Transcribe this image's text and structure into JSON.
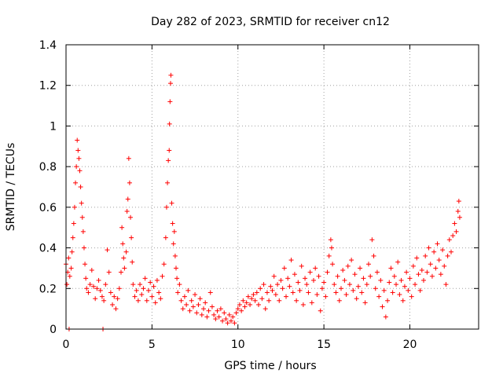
{
  "chart_data": {
    "type": "scatter",
    "title": "Day 282 of 2023, SRMTID for receiver cn12",
    "xlabel": "GPS time / hours",
    "ylabel": "SRMTID / TECUs",
    "xlim": [
      0,
      24
    ],
    "ylim": [
      0,
      1.4
    ],
    "xticks": [
      0,
      5,
      10,
      15,
      20
    ],
    "xtick_labels": [
      "0",
      "5",
      "10",
      "15",
      "20"
    ],
    "yticks": [
      0,
      0.2,
      0.4,
      0.6,
      0.8,
      1.0,
      1.2,
      1.4
    ],
    "ytick_labels": [
      "0",
      "0.2",
      "0.4",
      "0.6",
      "0.8",
      "1",
      "1.2",
      "1.4"
    ],
    "grid": true,
    "marker": "+",
    "color": "#ff0000",
    "series": [
      {
        "name": "SRMTID",
        "points": [
          [
            0.0,
            0.32
          ],
          [
            0.05,
            0.22
          ],
          [
            0.1,
            0.28
          ],
          [
            0.15,
            0.35
          ],
          [
            0.18,
            0.0
          ],
          [
            0.22,
            0.26
          ],
          [
            0.3,
            0.3
          ],
          [
            0.35,
            0.38
          ],
          [
            0.4,
            0.45
          ],
          [
            0.45,
            0.52
          ],
          [
            0.5,
            0.6
          ],
          [
            0.55,
            0.72
          ],
          [
            0.6,
            0.8
          ],
          [
            0.65,
            0.93
          ],
          [
            0.7,
            0.88
          ],
          [
            0.75,
            0.84
          ],
          [
            0.8,
            0.78
          ],
          [
            0.85,
            0.7
          ],
          [
            0.9,
            0.62
          ],
          [
            0.95,
            0.55
          ],
          [
            1.0,
            0.48
          ],
          [
            1.05,
            0.4
          ],
          [
            1.1,
            0.32
          ],
          [
            1.15,
            0.25
          ],
          [
            1.2,
            0.2
          ],
          [
            1.3,
            0.18
          ],
          [
            1.4,
            0.22
          ],
          [
            1.5,
            0.29
          ],
          [
            1.6,
            0.21
          ],
          [
            1.7,
            0.15
          ],
          [
            1.8,
            0.2
          ],
          [
            1.9,
            0.24
          ],
          [
            2.0,
            0.19
          ],
          [
            2.1,
            0.16
          ],
          [
            2.15,
            0.0
          ],
          [
            2.2,
            0.14
          ],
          [
            2.3,
            0.22
          ],
          [
            2.4,
            0.39
          ],
          [
            2.5,
            0.28
          ],
          [
            2.6,
            0.18
          ],
          [
            2.7,
            0.12
          ],
          [
            2.8,
            0.16
          ],
          [
            2.9,
            0.1
          ],
          [
            3.0,
            0.15
          ],
          [
            3.1,
            0.2
          ],
          [
            3.2,
            0.28
          ],
          [
            3.25,
            0.5
          ],
          [
            3.3,
            0.42
          ],
          [
            3.35,
            0.35
          ],
          [
            3.4,
            0.3
          ],
          [
            3.5,
            0.38
          ],
          [
            3.55,
            0.58
          ],
          [
            3.6,
            0.64
          ],
          [
            3.65,
            0.84
          ],
          [
            3.7,
            0.72
          ],
          [
            3.75,
            0.55
          ],
          [
            3.8,
            0.45
          ],
          [
            3.85,
            0.33
          ],
          [
            3.9,
            0.22
          ],
          [
            4.0,
            0.16
          ],
          [
            4.1,
            0.19
          ],
          [
            4.2,
            0.14
          ],
          [
            4.3,
            0.22
          ],
          [
            4.4,
            0.17
          ],
          [
            4.5,
            0.2
          ],
          [
            4.6,
            0.25
          ],
          [
            4.7,
            0.14
          ],
          [
            4.8,
            0.19
          ],
          [
            4.9,
            0.23
          ],
          [
            5.0,
            0.16
          ],
          [
            5.1,
            0.21
          ],
          [
            5.2,
            0.13
          ],
          [
            5.3,
            0.24
          ],
          [
            5.4,
            0.18
          ],
          [
            5.5,
            0.15
          ],
          [
            5.6,
            0.26
          ],
          [
            5.7,
            0.32
          ],
          [
            5.8,
            0.45
          ],
          [
            5.85,
            0.6
          ],
          [
            5.9,
            0.72
          ],
          [
            5.95,
            0.83
          ],
          [
            6.0,
            0.88
          ],
          [
            6.02,
            1.01
          ],
          [
            6.05,
            1.12
          ],
          [
            6.08,
            1.21
          ],
          [
            6.1,
            1.25
          ],
          [
            6.15,
            0.62
          ],
          [
            6.2,
            0.52
          ],
          [
            6.25,
            0.42
          ],
          [
            6.3,
            0.48
          ],
          [
            6.35,
            0.36
          ],
          [
            6.4,
            0.3
          ],
          [
            6.45,
            0.25
          ],
          [
            6.5,
            0.18
          ],
          [
            6.6,
            0.22
          ],
          [
            6.7,
            0.14
          ],
          [
            6.8,
            0.1
          ],
          [
            6.9,
            0.16
          ],
          [
            7.0,
            0.12
          ],
          [
            7.1,
            0.19
          ],
          [
            7.2,
            0.09
          ],
          [
            7.3,
            0.14
          ],
          [
            7.4,
            0.11
          ],
          [
            7.5,
            0.17
          ],
          [
            7.6,
            0.08
          ],
          [
            7.7,
            0.12
          ],
          [
            7.8,
            0.15
          ],
          [
            7.9,
            0.07
          ],
          [
            8.0,
            0.1
          ],
          [
            8.1,
            0.13
          ],
          [
            8.2,
            0.06
          ],
          [
            8.3,
            0.09
          ],
          [
            8.4,
            0.18
          ],
          [
            8.5,
            0.11
          ],
          [
            8.6,
            0.07
          ],
          [
            8.7,
            0.05
          ],
          [
            8.8,
            0.09
          ],
          [
            8.9,
            0.06
          ],
          [
            9.0,
            0.1
          ],
          [
            9.1,
            0.04
          ],
          [
            9.2,
            0.08
          ],
          [
            9.3,
            0.05
          ],
          [
            9.4,
            0.03
          ],
          [
            9.5,
            0.07
          ],
          [
            9.6,
            0.04
          ],
          [
            9.7,
            0.06
          ],
          [
            9.8,
            0.03
          ],
          [
            9.9,
            0.08
          ],
          [
            10.0,
            0.1
          ],
          [
            10.1,
            0.12
          ],
          [
            10.2,
            0.09
          ],
          [
            10.3,
            0.14
          ],
          [
            10.4,
            0.11
          ],
          [
            10.5,
            0.13
          ],
          [
            10.6,
            0.16
          ],
          [
            10.7,
            0.12
          ],
          [
            10.8,
            0.15
          ],
          [
            10.9,
            0.17
          ],
          [
            11.0,
            0.14
          ],
          [
            11.1,
            0.18
          ],
          [
            11.2,
            0.12
          ],
          [
            11.3,
            0.2
          ],
          [
            11.4,
            0.15
          ],
          [
            11.5,
            0.22
          ],
          [
            11.6,
            0.1
          ],
          [
            11.7,
            0.18
          ],
          [
            11.8,
            0.14
          ],
          [
            11.9,
            0.21
          ],
          [
            12.0,
            0.19
          ],
          [
            12.1,
            0.26
          ],
          [
            12.2,
            0.17
          ],
          [
            12.3,
            0.22
          ],
          [
            12.4,
            0.14
          ],
          [
            12.5,
            0.24
          ],
          [
            12.6,
            0.2
          ],
          [
            12.7,
            0.3
          ],
          [
            12.8,
            0.16
          ],
          [
            12.9,
            0.25
          ],
          [
            13.0,
            0.21
          ],
          [
            13.1,
            0.34
          ],
          [
            13.2,
            0.18
          ],
          [
            13.3,
            0.27
          ],
          [
            13.4,
            0.14
          ],
          [
            13.5,
            0.23
          ],
          [
            13.6,
            0.19
          ],
          [
            13.7,
            0.31
          ],
          [
            13.8,
            0.12
          ],
          [
            13.9,
            0.25
          ],
          [
            14.0,
            0.22
          ],
          [
            14.1,
            0.18
          ],
          [
            14.2,
            0.28
          ],
          [
            14.3,
            0.13
          ],
          [
            14.4,
            0.24
          ],
          [
            14.5,
            0.3
          ],
          [
            14.6,
            0.17
          ],
          [
            14.7,
            0.26
          ],
          [
            14.8,
            0.09
          ],
          [
            14.9,
            0.2
          ],
          [
            15.0,
            0.23
          ],
          [
            15.1,
            0.16
          ],
          [
            15.2,
            0.28
          ],
          [
            15.3,
            0.36
          ],
          [
            15.4,
            0.44
          ],
          [
            15.45,
            0.4
          ],
          [
            15.5,
            0.32
          ],
          [
            15.6,
            0.22
          ],
          [
            15.7,
            0.18
          ],
          [
            15.8,
            0.26
          ],
          [
            15.9,
            0.14
          ],
          [
            16.0,
            0.2
          ],
          [
            16.1,
            0.29
          ],
          [
            16.2,
            0.24
          ],
          [
            16.3,
            0.17
          ],
          [
            16.4,
            0.31
          ],
          [
            16.5,
            0.22
          ],
          [
            16.6,
            0.34
          ],
          [
            16.7,
            0.19
          ],
          [
            16.8,
            0.27
          ],
          [
            16.9,
            0.15
          ],
          [
            17.0,
            0.21
          ],
          [
            17.1,
            0.3
          ],
          [
            17.2,
            0.18
          ],
          [
            17.3,
            0.25
          ],
          [
            17.4,
            0.13
          ],
          [
            17.5,
            0.22
          ],
          [
            17.6,
            0.32
          ],
          [
            17.7,
            0.26
          ],
          [
            17.8,
            0.44
          ],
          [
            17.9,
            0.36
          ],
          [
            18.0,
            0.2
          ],
          [
            18.1,
            0.28
          ],
          [
            18.2,
            0.16
          ],
          [
            18.3,
            0.24
          ],
          [
            18.4,
            0.11
          ],
          [
            18.5,
            0.19
          ],
          [
            18.6,
            0.06
          ],
          [
            18.7,
            0.14
          ],
          [
            18.8,
            0.23
          ],
          [
            18.9,
            0.3
          ],
          [
            19.0,
            0.18
          ],
          [
            19.1,
            0.26
          ],
          [
            19.2,
            0.22
          ],
          [
            19.3,
            0.33
          ],
          [
            19.4,
            0.17
          ],
          [
            19.5,
            0.24
          ],
          [
            19.6,
            0.14
          ],
          [
            19.7,
            0.21
          ],
          [
            19.8,
            0.28
          ],
          [
            19.9,
            0.19
          ],
          [
            20.0,
            0.25
          ],
          [
            20.1,
            0.16
          ],
          [
            20.2,
            0.31
          ],
          [
            20.3,
            0.22
          ],
          [
            20.4,
            0.35
          ],
          [
            20.5,
            0.27
          ],
          [
            20.6,
            0.19
          ],
          [
            20.7,
            0.29
          ],
          [
            20.8,
            0.24
          ],
          [
            20.9,
            0.36
          ],
          [
            21.0,
            0.28
          ],
          [
            21.1,
            0.4
          ],
          [
            21.2,
            0.32
          ],
          [
            21.3,
            0.26
          ],
          [
            21.4,
            0.38
          ],
          [
            21.5,
            0.3
          ],
          [
            21.6,
            0.42
          ],
          [
            21.7,
            0.34
          ],
          [
            21.8,
            0.27
          ],
          [
            21.9,
            0.39
          ],
          [
            22.0,
            0.31
          ],
          [
            22.1,
            0.22
          ],
          [
            22.2,
            0.36
          ],
          [
            22.3,
            0.44
          ],
          [
            22.4,
            0.38
          ],
          [
            22.5,
            0.46
          ],
          [
            22.6,
            0.52
          ],
          [
            22.7,
            0.48
          ],
          [
            22.8,
            0.58
          ],
          [
            22.85,
            0.63
          ],
          [
            22.9,
            0.55
          ]
        ]
      }
    ]
  }
}
